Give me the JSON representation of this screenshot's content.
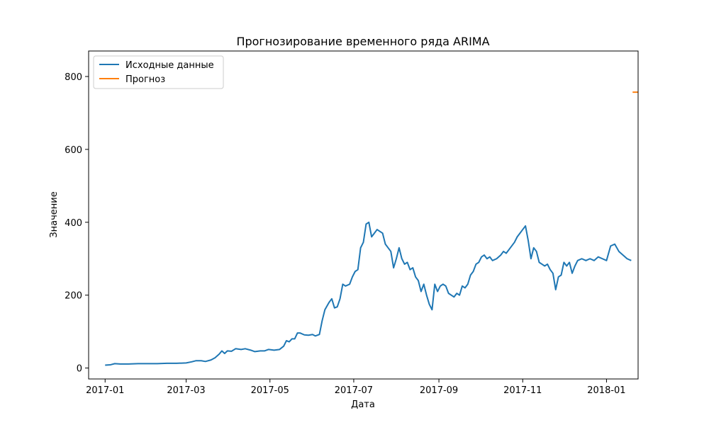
{
  "chart_data": {
    "type": "line",
    "title": "Прогнозирование временного ряда ARIMA",
    "xlabel": "Дата",
    "ylabel": "Значение",
    "xlim": [
      "2016-12-20",
      "2018-01-24"
    ],
    "ylim": [
      -30,
      870
    ],
    "x_ticks": [
      "2017-01",
      "2017-03",
      "2017-05",
      "2017-07",
      "2017-09",
      "2017-11",
      "2018-01"
    ],
    "y_ticks": [
      0,
      200,
      400,
      600,
      800
    ],
    "grid": false,
    "legend": {
      "position": "top-left"
    },
    "series": [
      {
        "name": "Исходные данные",
        "color": "#1f77b4",
        "points": [
          [
            "2017-01-01",
            8
          ],
          [
            "2017-01-05",
            9
          ],
          [
            "2017-01-08",
            12
          ],
          [
            "2017-01-12",
            11
          ],
          [
            "2017-01-18",
            11
          ],
          [
            "2017-01-25",
            12
          ],
          [
            "2017-02-01",
            12
          ],
          [
            "2017-02-08",
            12
          ],
          [
            "2017-02-15",
            13
          ],
          [
            "2017-02-22",
            13
          ],
          [
            "2017-03-01",
            14
          ],
          [
            "2017-03-05",
            17
          ],
          [
            "2017-03-08",
            20
          ],
          [
            "2017-03-12",
            20
          ],
          [
            "2017-03-15",
            18
          ],
          [
            "2017-03-19",
            22
          ],
          [
            "2017-03-22",
            28
          ],
          [
            "2017-03-25",
            38
          ],
          [
            "2017-03-27",
            47
          ],
          [
            "2017-03-29",
            40
          ],
          [
            "2017-03-31",
            47
          ],
          [
            "2017-04-03",
            46
          ],
          [
            "2017-04-06",
            53
          ],
          [
            "2017-04-10",
            51
          ],
          [
            "2017-04-13",
            53
          ],
          [
            "2017-04-17",
            49
          ],
          [
            "2017-04-20",
            45
          ],
          [
            "2017-04-24",
            47
          ],
          [
            "2017-04-27",
            47
          ],
          [
            "2017-04-30",
            51
          ],
          [
            "2017-05-04",
            49
          ],
          [
            "2017-05-08",
            51
          ],
          [
            "2017-05-11",
            60
          ],
          [
            "2017-05-13",
            75
          ],
          [
            "2017-05-15",
            72
          ],
          [
            "2017-05-17",
            80
          ],
          [
            "2017-05-19",
            80
          ],
          [
            "2017-05-21",
            96
          ],
          [
            "2017-05-23",
            96
          ],
          [
            "2017-05-26",
            91
          ],
          [
            "2017-05-29",
            90
          ],
          [
            "2017-06-01",
            92
          ],
          [
            "2017-06-03",
            88
          ],
          [
            "2017-06-06",
            92
          ],
          [
            "2017-06-08",
            130
          ],
          [
            "2017-06-10",
            160
          ],
          [
            "2017-06-13",
            180
          ],
          [
            "2017-06-15",
            190
          ],
          [
            "2017-06-17",
            165
          ],
          [
            "2017-06-19",
            168
          ],
          [
            "2017-06-21",
            190
          ],
          [
            "2017-06-23",
            230
          ],
          [
            "2017-06-25",
            225
          ],
          [
            "2017-06-28",
            230
          ],
          [
            "2017-06-30",
            250
          ],
          [
            "2017-07-02",
            265
          ],
          [
            "2017-07-04",
            270
          ],
          [
            "2017-07-06",
            330
          ],
          [
            "2017-07-08",
            345
          ],
          [
            "2017-07-10",
            395
          ],
          [
            "2017-07-12",
            400
          ],
          [
            "2017-07-14",
            360
          ],
          [
            "2017-07-16",
            370
          ],
          [
            "2017-07-18",
            380
          ],
          [
            "2017-07-20",
            375
          ],
          [
            "2017-07-22",
            370
          ],
          [
            "2017-07-24",
            340
          ],
          [
            "2017-07-26",
            330
          ],
          [
            "2017-07-28",
            320
          ],
          [
            "2017-07-30",
            275
          ],
          [
            "2017-08-01",
            300
          ],
          [
            "2017-08-03",
            330
          ],
          [
            "2017-08-05",
            300
          ],
          [
            "2017-08-07",
            285
          ],
          [
            "2017-08-09",
            290
          ],
          [
            "2017-08-11",
            270
          ],
          [
            "2017-08-13",
            275
          ],
          [
            "2017-08-15",
            250
          ],
          [
            "2017-08-17",
            240
          ],
          [
            "2017-08-19",
            210
          ],
          [
            "2017-08-21",
            230
          ],
          [
            "2017-08-23",
            200
          ],
          [
            "2017-08-25",
            175
          ],
          [
            "2017-08-27",
            160
          ],
          [
            "2017-08-29",
            230
          ],
          [
            "2017-08-31",
            210
          ],
          [
            "2017-09-02",
            225
          ],
          [
            "2017-09-04",
            230
          ],
          [
            "2017-09-06",
            225
          ],
          [
            "2017-09-08",
            205
          ],
          [
            "2017-09-10",
            200
          ],
          [
            "2017-09-12",
            195
          ],
          [
            "2017-09-14",
            205
          ],
          [
            "2017-09-16",
            200
          ],
          [
            "2017-09-18",
            225
          ],
          [
            "2017-09-20",
            220
          ],
          [
            "2017-09-22",
            230
          ],
          [
            "2017-09-24",
            255
          ],
          [
            "2017-09-26",
            265
          ],
          [
            "2017-09-28",
            285
          ],
          [
            "2017-09-30",
            290
          ],
          [
            "2017-10-02",
            305
          ],
          [
            "2017-10-04",
            310
          ],
          [
            "2017-10-06",
            300
          ],
          [
            "2017-10-08",
            305
          ],
          [
            "2017-10-10",
            295
          ],
          [
            "2017-10-13",
            300
          ],
          [
            "2017-10-16",
            310
          ],
          [
            "2017-10-18",
            320
          ],
          [
            "2017-10-20",
            315
          ],
          [
            "2017-10-23",
            330
          ],
          [
            "2017-10-26",
            345
          ],
          [
            "2017-10-28",
            360
          ],
          [
            "2017-10-30",
            370
          ],
          [
            "2017-11-01",
            380
          ],
          [
            "2017-11-03",
            390
          ],
          [
            "2017-11-05",
            350
          ],
          [
            "2017-11-07",
            300
          ],
          [
            "2017-11-09",
            330
          ],
          [
            "2017-11-11",
            320
          ],
          [
            "2017-11-13",
            290
          ],
          [
            "2017-11-15",
            285
          ],
          [
            "2017-11-17",
            280
          ],
          [
            "2017-11-19",
            285
          ],
          [
            "2017-11-21",
            270
          ],
          [
            "2017-11-23",
            260
          ],
          [
            "2017-11-25",
            215
          ],
          [
            "2017-11-27",
            250
          ],
          [
            "2017-11-29",
            255
          ],
          [
            "2017-12-01",
            290
          ],
          [
            "2017-12-03",
            280
          ],
          [
            "2017-12-05",
            290
          ],
          [
            "2017-12-07",
            260
          ],
          [
            "2017-12-09",
            280
          ],
          [
            "2017-12-11",
            295
          ],
          [
            "2017-12-14",
            300
          ],
          [
            "2017-12-17",
            295
          ],
          [
            "2017-12-20",
            300
          ],
          [
            "2017-12-23",
            295
          ],
          [
            "2017-12-26",
            305
          ],
          [
            "2017-12-29",
            300
          ],
          [
            "2018-01-01",
            295
          ],
          [
            "2018-01-04",
            335
          ],
          [
            "2018-01-07",
            340
          ],
          [
            "2018-01-10",
            320
          ],
          [
            "2018-01-13",
            310
          ],
          [
            "2018-01-16",
            300
          ],
          [
            "2018-01-19",
            295
          ]
        ]
      },
      {
        "name": "Прогноз",
        "color": "#ff7f0e",
        "points": [
          [
            "2018-01-20",
            757
          ],
          [
            "2018-01-24",
            757
          ]
        ]
      }
    ]
  }
}
